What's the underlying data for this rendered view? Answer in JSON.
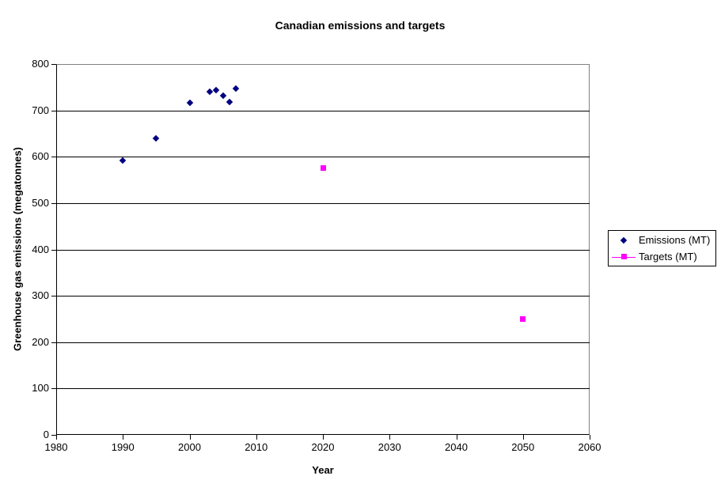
{
  "page": {
    "background": "#FFFFFF"
  },
  "chart_data": {
    "type": "scatter",
    "title": "Canadian emissions and targets",
    "xlabel": "Year",
    "ylabel": "Greenhouse gas emissions (megatonnes)",
    "xlim": [
      1980,
      2060
    ],
    "ylim": [
      0,
      800
    ],
    "x_ticks": [
      1980,
      1990,
      2000,
      2010,
      2020,
      2030,
      2040,
      2050,
      2060
    ],
    "y_ticks": [
      0,
      100,
      200,
      300,
      400,
      500,
      600,
      700,
      800
    ],
    "grid": "horizontal-only",
    "legend_position": "right",
    "plot_border_color": "#808080",
    "axis_color": "#000000",
    "gridline_color": "#000000",
    "series": [
      {
        "key": "emissions",
        "name": "Emissions (MT)",
        "marker": "diamond",
        "color": "#000080",
        "line_in_plot": false,
        "legend_shows_line": false,
        "points": [
          {
            "x": 1990,
            "y": 592
          },
          {
            "x": 1995,
            "y": 640
          },
          {
            "x": 2000,
            "y": 717
          },
          {
            "x": 2003,
            "y": 740
          },
          {
            "x": 2004,
            "y": 743
          },
          {
            "x": 2005,
            "y": 731
          },
          {
            "x": 2006,
            "y": 718
          },
          {
            "x": 2007,
            "y": 747
          }
        ]
      },
      {
        "key": "targets",
        "name": "Targets (MT)",
        "marker": "square",
        "color": "#FF00FF",
        "line_in_plot": false,
        "legend_shows_line": true,
        "points": [
          {
            "x": 2020,
            "y": 575
          },
          {
            "x": 2050,
            "y": 250
          }
        ]
      }
    ]
  }
}
